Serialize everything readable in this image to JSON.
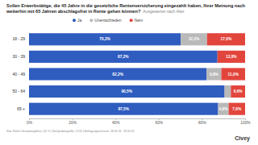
{
  "chart_data": {
    "type": "bar",
    "orientation": "horizontal",
    "stacked": true,
    "data_labels": true,
    "grid": false,
    "legend": "top",
    "title": "Sollen Erwerbstätige, die 45 Jahre in die gesetzliche Rentenversicherung eingezahlt haben, Ihrer Meinung nach weiterhin mit 65 Jahren abschlagsfrei in Rente gehen können?",
    "subtitle": "Ausgewertet nach Alter",
    "categories": [
      "18 - 29",
      "30 - 39",
      "40 - 49",
      "50 - 64",
      "65 +"
    ],
    "series": [
      {
        "name": "Ja",
        "color": "#2f5cbf",
        "values": [
          70.2,
          87.2,
          82.2,
          90.5,
          87.5
        ],
        "value_labels": [
          "70,2%",
          "87,2%",
          "82,2%",
          "90,5%",
          "87,5%"
        ]
      },
      {
        "name": "Unentschieden",
        "color": "#b9b9b9",
        "values": [
          12.2,
          null,
          6.8,
          2.9,
          4.9
        ],
        "value_labels": [
          "12,2%",
          null,
          "6,8%",
          null,
          "4,9%"
        ]
      },
      {
        "name": "Nein",
        "color": "#e2453c",
        "values": [
          17.6,
          12.8,
          11.0,
          6.6,
          7.6
        ],
        "value_labels": [
          "17,6%",
          "12,8%",
          "11,0%",
          "6,6%",
          "7,6%"
        ]
      }
    ],
    "xlim": [
      0,
      100
    ],
    "xticks": [
      {
        "value": 0,
        "label": "0%"
      },
      {
        "value": 20,
        "label": "20%"
      },
      {
        "value": 40,
        "label": "40%"
      },
      {
        "value": 60,
        "label": "60%"
      },
      {
        "value": 80,
        "label": "80%"
      },
      {
        "value": 100,
        "label": "100%"
      }
    ],
    "source": "Stat. Fehler Gesamtergebnis: 3,6 % | Stichprobengröße: 2.512 | Befragungszeitraum: 28.05.24 - 29.05.24",
    "logo": "Civey"
  }
}
